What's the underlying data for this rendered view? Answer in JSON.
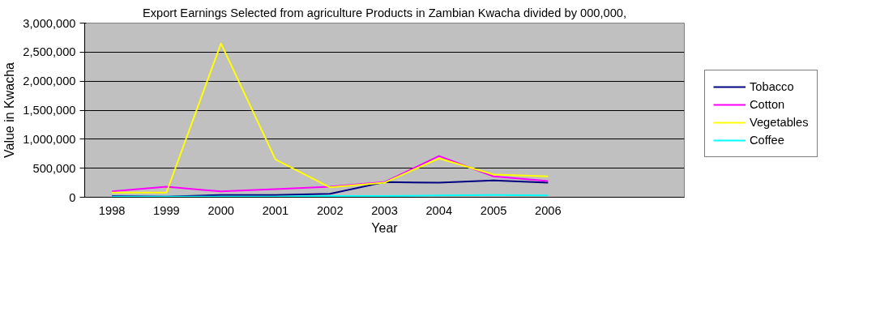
{
  "chart_data": {
    "type": "line",
    "title": "Export Earnings Selected from agriculture Products in Zambian Kwacha divided by 000,000,",
    "xlabel": "Year",
    "ylabel": "Value in Kwacha",
    "categories": [
      "1998",
      "1999",
      "2000",
      "2001",
      "2002",
      "2003",
      "2004",
      "2005",
      "2006",
      null,
      null
    ],
    "series": [
      {
        "name": "Tobacco",
        "color": "#000080",
        "values": [
          20000,
          10000,
          40000,
          40000,
          60000,
          260000,
          250000,
          290000,
          250000,
          null,
          null
        ]
      },
      {
        "name": "Cotton",
        "color": "#ff00ff",
        "values": [
          100000,
          180000,
          100000,
          140000,
          180000,
          260000,
          710000,
          360000,
          280000,
          null,
          null
        ]
      },
      {
        "name": "Vegetables",
        "color": "#ffff00",
        "values": [
          80000,
          80000,
          2650000,
          650000,
          170000,
          250000,
          670000,
          390000,
          360000,
          null,
          null
        ]
      },
      {
        "name": "Coffee",
        "color": "#00ffff",
        "values": [
          10000,
          10000,
          10000,
          10000,
          20000,
          20000,
          30000,
          40000,
          30000,
          null,
          null
        ]
      }
    ],
    "ylim": [
      0,
      3000000
    ],
    "yticks": [
      {
        "value": 0,
        "label": "0"
      },
      {
        "value": 500000,
        "label": "500,000"
      },
      {
        "value": 1000000,
        "label": "1,000,000"
      },
      {
        "value": 1500000,
        "label": "1,500,000"
      },
      {
        "value": 2000000,
        "label": "2,000,000"
      },
      {
        "value": 2500000,
        "label": "2,500,000"
      },
      {
        "value": 3000000,
        "label": "3,000,000"
      }
    ],
    "grid": "y",
    "legend": "right",
    "marker": "none",
    "line_style": "solid"
  }
}
